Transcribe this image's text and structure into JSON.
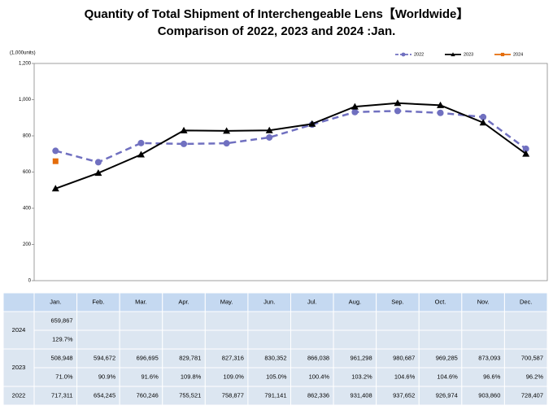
{
  "chart_data": {
    "type": "line",
    "title": "Quantity of Total Shipment of Interchengeable Lens【Worldwide】",
    "subtitle": "Comparison of 2022, 2023 and 2024 :Jan.",
    "y_label": "(1,000units)",
    "categories": [
      "Jan.",
      "Feb.",
      "Mar.",
      "Apr.",
      "May.",
      "Jun.",
      "Jul.",
      "Aug.",
      "Sep.",
      "Oct.",
      "Nov.",
      "Dec."
    ],
    "ylim": [
      0,
      1200
    ],
    "yticks": [
      0,
      200,
      400,
      600,
      800,
      {
        "value": 1000,
        "label": "1,000"
      },
      {
        "value": 1200,
        "label": "1,200"
      }
    ],
    "grid": false,
    "legend": "top-right",
    "series": [
      {
        "name": "2022",
        "color": "#7070c0",
        "style": "dashed",
        "marker": "circle",
        "values": [
          717.311,
          654.245,
          760.246,
          755.521,
          758.877,
          791.141,
          862.336,
          931.408,
          937.652,
          926.974,
          903.86,
          728.407
        ],
        "value_labels": [
          "717,311",
          "654,245",
          "760,246",
          "755,521",
          "758,877",
          "791,141",
          "862,336",
          "931,408",
          "937,652",
          "926,974",
          "903,860",
          "728,407"
        ]
      },
      {
        "name": "2023",
        "color": "#000000",
        "style": "solid",
        "marker": "triangle",
        "values": [
          508.948,
          594.672,
          696.695,
          829.781,
          827.316,
          830.352,
          866.038,
          961.298,
          980.687,
          969.285,
          873.093,
          700.587
        ],
        "value_labels": [
          "508,948",
          "594,672",
          "696,695",
          "829,781",
          "827,316",
          "830,352",
          "866,038",
          "961,298",
          "980,687",
          "969,285",
          "873,093",
          "700,587"
        ],
        "yoy_labels": [
          "71.0%",
          "90.9%",
          "91.6%",
          "109.8%",
          "109.0%",
          "105.0%",
          "100.4%",
          "103.2%",
          "104.6%",
          "104.6%",
          "96.6%",
          "96.2%"
        ]
      },
      {
        "name": "2024",
        "color": "#e46c0a",
        "style": "solid",
        "marker": "square",
        "values": [
          659.867,
          null,
          null,
          null,
          null,
          null,
          null,
          null,
          null,
          null,
          null,
          null
        ],
        "value_labels": [
          "659,867",
          null,
          null,
          null,
          null,
          null,
          null,
          null,
          null,
          null,
          null,
          null
        ],
        "yoy_labels": [
          "129.7%",
          null,
          null,
          null,
          null,
          null,
          null,
          null,
          null,
          null,
          null,
          null
        ]
      }
    ]
  }
}
